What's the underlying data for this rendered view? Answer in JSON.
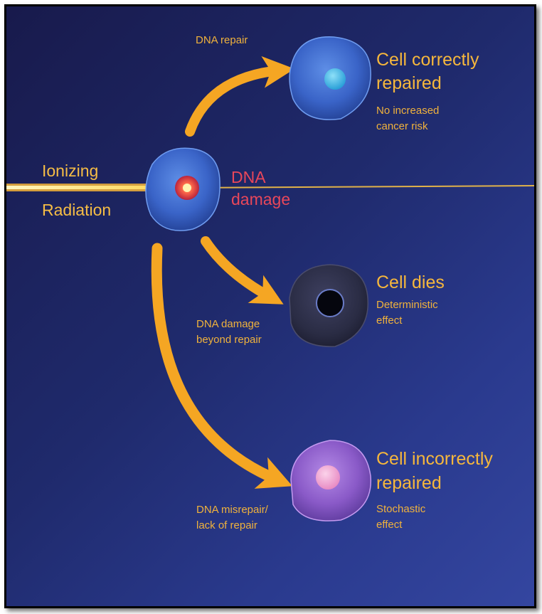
{
  "source": {
    "line1": "Ionizing",
    "line2": "Radiation",
    "damage_line1": "DNA",
    "damage_line2": "damage"
  },
  "paths": [
    {
      "arrow_label_lines": [
        "DNA repair"
      ],
      "outcome_title_lines": [
        "Cell correctly",
        "repaired"
      ],
      "outcome_desc_lines": [
        "No increased",
        "cancer risk"
      ]
    },
    {
      "arrow_label_lines": [
        "DNA damage",
        "beyond repair"
      ],
      "outcome_title_lines": [
        "Cell dies"
      ],
      "outcome_desc_lines": [
        "Deterministic",
        "effect"
      ]
    },
    {
      "arrow_label_lines": [
        "DNA misrepair/",
        "lack of repair"
      ],
      "outcome_title_lines": [
        "Cell incorrectly",
        "repaired"
      ],
      "outcome_desc_lines": [
        "Stochastic",
        "effect"
      ]
    }
  ],
  "colors": {
    "arrow": "#f5a623",
    "label_text": "#f4b63a",
    "damage_text": "#e8475a",
    "background": "#1f2a6c",
    "healthy_cell": "#3a64c8",
    "dead_cell": "#2a2c44",
    "mutated_cell": "#8a5ac8"
  }
}
